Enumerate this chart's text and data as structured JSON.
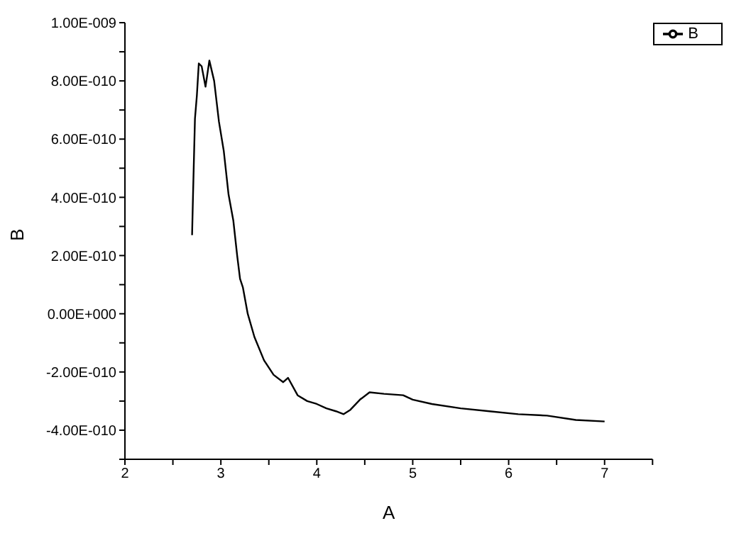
{
  "chart_data": {
    "type": "line",
    "xlabel": "A",
    "ylabel": "B",
    "legend": "top right",
    "grid": false,
    "marker": "none",
    "line_style": "solid",
    "xlim": [
      2,
      7.5
    ],
    "ylim": [
      -5e-10,
      1e-09
    ],
    "xticks": [
      2,
      {
        "value": 2.5,
        "label": null
      },
      3,
      {
        "value": 3.5,
        "label": null
      },
      4,
      {
        "value": 4.5,
        "label": null
      },
      5,
      {
        "value": 5.5,
        "label": null
      },
      6,
      {
        "value": 6.5,
        "label": null
      },
      7,
      {
        "value": 7.5,
        "label": null
      }
    ],
    "yticks": [
      {
        "value": -5e-10,
        "label": null
      },
      {
        "value": -4e-10,
        "label": "-4.00E-010"
      },
      {
        "value": -3e-10,
        "label": null
      },
      {
        "value": -2e-10,
        "label": "-2.00E-010"
      },
      {
        "value": -1e-10,
        "label": null
      },
      {
        "value": 0,
        "label": "0.00E+000"
      },
      {
        "value": 1e-10,
        "label": null
      },
      {
        "value": 2e-10,
        "label": "2.00E-010"
      },
      {
        "value": 3e-10,
        "label": null
      },
      {
        "value": 4e-10,
        "label": "4.00E-010"
      },
      {
        "value": 5e-10,
        "label": null
      },
      {
        "value": 6e-10,
        "label": "6.00E-010"
      },
      {
        "value": 7e-10,
        "label": null
      },
      {
        "value": 8e-10,
        "label": "8.00E-010"
      },
      {
        "value": 9e-10,
        "label": null
      },
      {
        "value": 1e-09,
        "label": "1.00E-009"
      }
    ],
    "series": [
      {
        "name": "B",
        "color": "#000000",
        "x": [
          2.7,
          2.71,
          2.73,
          2.75,
          2.77,
          2.8,
          2.84,
          2.88,
          2.93,
          2.98,
          3.03,
          3.08,
          3.13,
          3.17,
          3.2,
          3.23,
          3.28,
          3.35,
          3.45,
          3.55,
          3.65,
          3.7,
          3.8,
          3.9,
          4.0,
          4.1,
          4.2,
          4.28,
          4.35,
          4.45,
          4.55,
          4.7,
          4.9,
          5.0,
          5.2,
          5.5,
          5.8,
          6.1,
          6.4,
          6.7,
          7.0
        ],
        "values": [
          2.7e-10,
          4.1e-10,
          6.7e-10,
          7.5e-10,
          8.6e-10,
          8.5e-10,
          7.8e-10,
          8.7e-10,
          8e-10,
          6.6e-10,
          5.6e-10,
          4.1e-10,
          3.2e-10,
          2e-10,
          1.2e-10,
          9e-11,
          0,
          -8e-11,
          -1.6e-10,
          -2.1e-10,
          -2.35e-10,
          -2.2e-10,
          -2.8e-10,
          -3e-10,
          -3.1e-10,
          -3.25e-10,
          -3.35e-10,
          -3.45e-10,
          -3.3e-10,
          -2.95e-10,
          -2.7e-10,
          -2.75e-10,
          -2.8e-10,
          -2.95e-10,
          -3.1e-10,
          -3.25e-10,
          -3.35e-10,
          -3.45e-10,
          -3.5e-10,
          -3.65e-10,
          -3.7e-10
        ]
      }
    ]
  }
}
